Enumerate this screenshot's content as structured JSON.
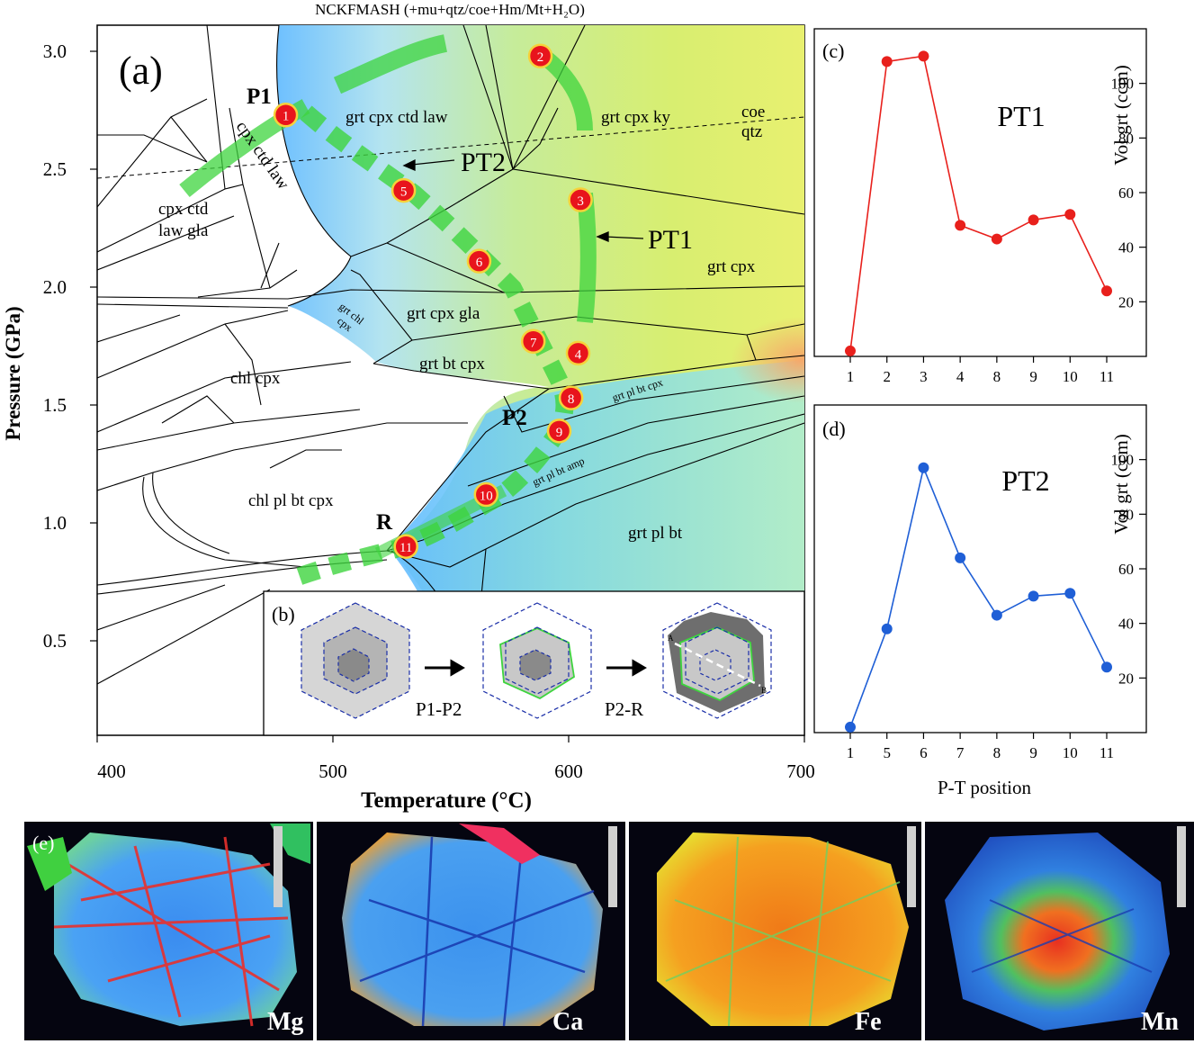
{
  "figure_title": "NCKFMASH (+mu+qtz/coe+Hm/Mt+H₂O)",
  "panel_a": {
    "label": "(a)",
    "x_axis_label": "Temperature (°C)",
    "y_axis_label": "Pressure (GPa)",
    "x_ticks": [
      "400",
      "500",
      "600",
      "700"
    ],
    "y_ticks": [
      "0.5",
      "1.0",
      "1.5",
      "2.0",
      "2.5",
      "3.0"
    ],
    "path_labels": {
      "p1": "P1",
      "p2": "P2",
      "r": "R",
      "pt1": "PT1",
      "pt2": "PT2"
    },
    "field_labels": {
      "grt_cpx_ctd_law": "grt cpx ctd law",
      "grt_cpx_ky": "grt cpx ky",
      "coe": "coe",
      "qtz": "qtz",
      "cpx_ctd_law_gla_1": "cpx ctd",
      "cpx_ctd_law_gla_2": "law gla",
      "cpx_ctd_law_diag": "cpx ctd law",
      "grt_cpx": "grt cpx",
      "grt_chl_cpx_1": "grt chl",
      "grt_chl_cpx_2": "cpx",
      "grt_cpx_gla": "grt cpx gla",
      "chl_cpx": "chl cpx",
      "grt_bt_cpx": "grt bt cpx",
      "grt_pl_bt_cpx": "grt pl bt cpx",
      "grt_pl_bt_amp": "grt pl bt amp",
      "chl_pl_bt_cpx": "chl pl bt cpx",
      "grt_pl_bt": "grt pl bt"
    },
    "points": [
      {
        "id": "1",
        "T": 480,
        "P": 2.73
      },
      {
        "id": "2",
        "T": 588,
        "P": 2.98
      },
      {
        "id": "3",
        "T": 605,
        "P": 2.37
      },
      {
        "id": "4",
        "T": 604,
        "P": 1.72
      },
      {
        "id": "5",
        "T": 530,
        "P": 2.41
      },
      {
        "id": "6",
        "T": 562,
        "P": 2.11
      },
      {
        "id": "7",
        "T": 585,
        "P": 1.77
      },
      {
        "id": "8",
        "T": 601,
        "P": 1.53
      },
      {
        "id": "9",
        "T": 596,
        "P": 1.39
      },
      {
        "id": "10",
        "T": 565,
        "P": 1.12
      },
      {
        "id": "11",
        "T": 531,
        "P": 0.9
      }
    ]
  },
  "panel_b": {
    "label": "(b)",
    "step1": "P1-P2",
    "step2": "P2-R",
    "marker_a": "A",
    "marker_b": "B"
  },
  "chart_data": [
    {
      "type": "line",
      "panel": "(c)",
      "title": "PT1",
      "categories": [
        "1",
        "2",
        "3",
        "4",
        "8",
        "9",
        "10",
        "11"
      ],
      "values": [
        2,
        108,
        110,
        48,
        43,
        50,
        52,
        24
      ],
      "ylabel": "Vol grt (ccm)",
      "y_ticks": [
        "20",
        "40",
        "60",
        "80",
        "100"
      ],
      "ylim": [
        0,
        120
      ],
      "color": "#e8201c"
    },
    {
      "type": "line",
      "panel": "(d)",
      "title": "PT2",
      "categories": [
        "1",
        "5",
        "6",
        "7",
        "8",
        "9",
        "10",
        "11"
      ],
      "values": [
        2,
        38,
        97,
        64,
        43,
        50,
        51,
        24
      ],
      "xlabel": "P-T position",
      "ylabel": "Vol grt (ccm)",
      "y_ticks": [
        "20",
        "40",
        "60",
        "80",
        "100"
      ],
      "ylim": [
        0,
        120
      ],
      "color": "#1f5fd6"
    }
  ],
  "panel_e": {
    "label": "(e)",
    "maps": [
      "Mg",
      "Ca",
      "Fe",
      "Mn"
    ]
  }
}
